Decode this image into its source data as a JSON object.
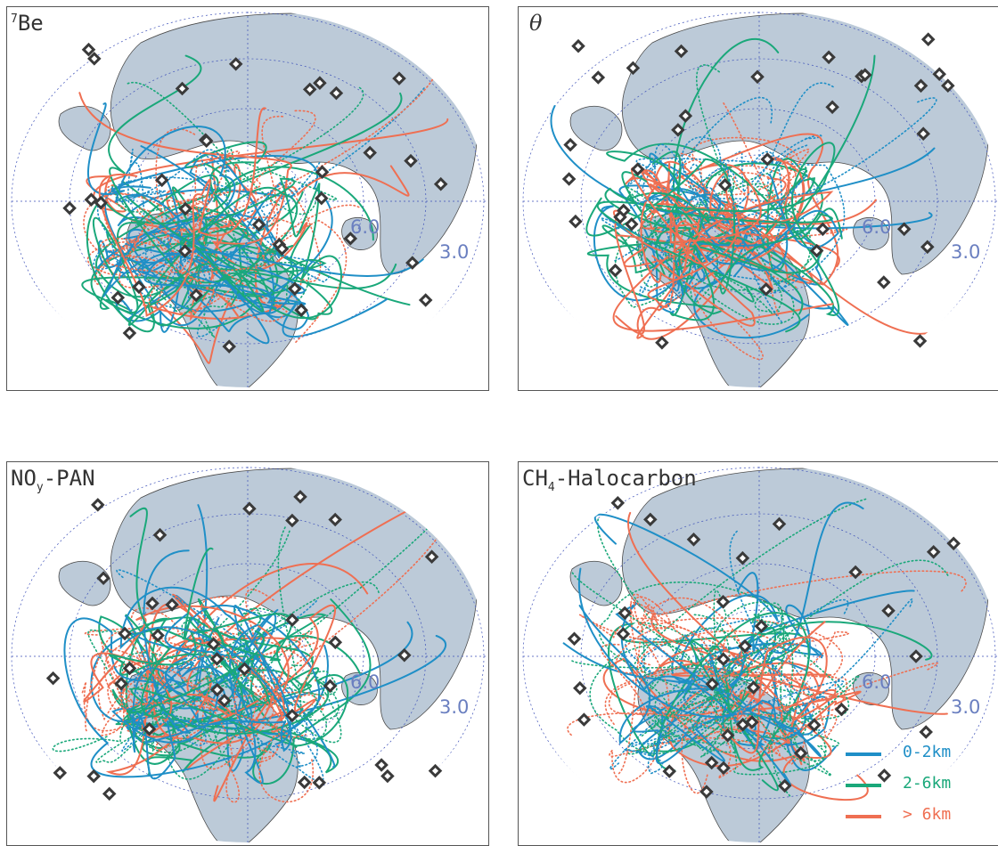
{
  "colors": {
    "land": "#bccad8",
    "coast": "#4a4a4a",
    "grid": "#3b4fb8",
    "marker_fill": "#3a3a3a",
    "low": "#1f8fc7",
    "mid": "#1aa87a",
    "high": "#ef6f52"
  },
  "map": {
    "lat_labels": [
      "6.0",
      "3.0"
    ]
  },
  "panels": [
    {
      "id": "be7",
      "title_super": "7",
      "title_main": "Be",
      "title_sub": ""
    },
    {
      "id": "theta",
      "title_super": "",
      "title_main": "θ",
      "title_sub": ""
    },
    {
      "id": "noy",
      "title_super": "",
      "title_main": "NO",
      "title_sub": "y",
      "title_tail": "-PAN"
    },
    {
      "id": "ch4",
      "title_super": "",
      "title_main": "CH",
      "title_sub": "4",
      "title_tail": "-Halocarbon"
    }
  ],
  "legend": [
    {
      "label": "0-2km",
      "color_key": "low"
    },
    {
      "label": "2-6km",
      "color_key": "mid"
    },
    {
      "label": "> 6km",
      "color_key": "high"
    }
  ]
}
